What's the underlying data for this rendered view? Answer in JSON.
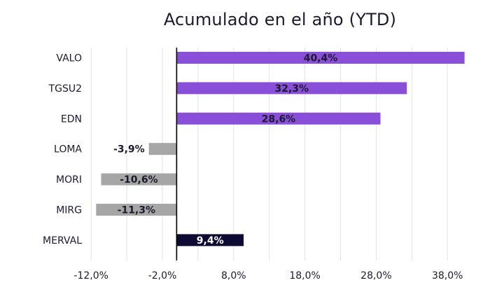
{
  "chart_data": {
    "type": "bar",
    "orientation": "horizontal",
    "title": "Acumulado en el año (YTD)",
    "xlabel": "",
    "ylabel": "",
    "categories": [
      "VALO",
      "TGSU2",
      "EDN",
      "LOMA",
      "MORI",
      "MIRG",
      "MERVAL"
    ],
    "values": [
      40.4,
      32.3,
      28.6,
      -3.9,
      -10.6,
      -11.3,
      9.4
    ],
    "value_labels": [
      "40,4%",
      "32,3%",
      "28,6%",
      "-3,9%",
      "-10,6%",
      "-11,3%",
      "9,4%"
    ],
    "bar_colors": [
      "#8a4fd8",
      "#8a4fd8",
      "#8a4fd8",
      "#a6a6a6",
      "#a6a6a6",
      "#a6a6a6",
      "#0e0b33"
    ],
    "label_colors": [
      "#1b1b2e",
      "#1b1b2e",
      "#1b1b2e",
      "#1b1b2e",
      "#1b1b2e",
      "#1b1b2e",
      "#ffffff"
    ],
    "xlim": [
      -12,
      42
    ],
    "xticks": [
      -12,
      -2,
      8,
      18,
      28,
      38
    ],
    "xtick_labels": [
      "-12,0%",
      "-2,0%",
      "8,0%",
      "18,0%",
      "28,0%",
      "38,0%"
    ],
    "grid": "vertical",
    "legend": "none"
  }
}
